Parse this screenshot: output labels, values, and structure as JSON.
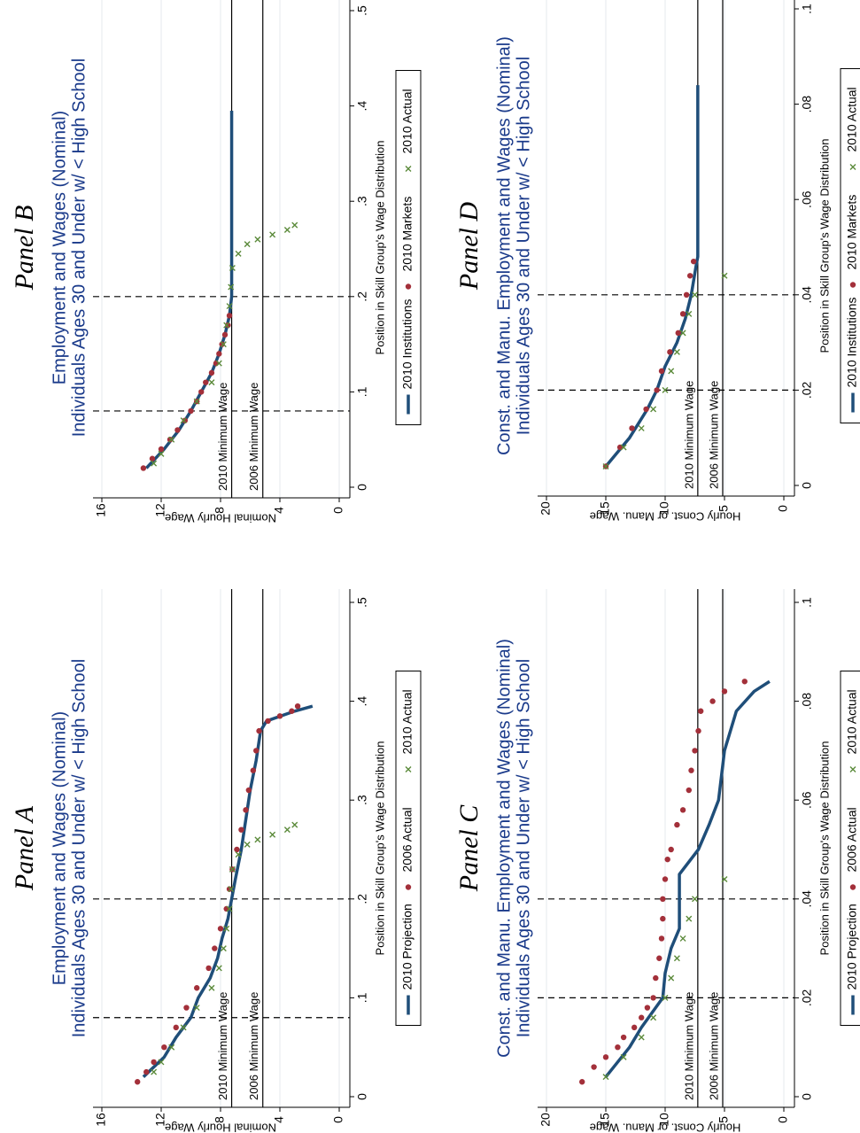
{
  "chart_data": [
    {
      "type": "line",
      "title": "Panel A",
      "subtitle": [
        "Employment and Wages (Nominal)",
        "Individuals Ages 30 and Under w/ < High School"
      ],
      "x_label": "Position in Skill Group's Wage Distribution",
      "y_label": "Nominal Hourly Wage",
      "xlim": [
        0,
        0.5
      ],
      "xticks": [
        0,
        {
          "value": 0.1,
          "label": ".1"
        },
        {
          "value": 0.2,
          "label": ".2"
        },
        {
          "value": 0.3,
          "label": ".3"
        },
        {
          "value": 0.4,
          "label": ".4"
        },
        {
          "value": 0.5,
          "label": ".5"
        }
      ],
      "ylim": [
        0,
        16
      ],
      "yticks": [
        0,
        4,
        8,
        12,
        16
      ],
      "grid": true,
      "reference_lines": [
        {
          "value": 7.25,
          "label": "2010 Minimum Wage"
        },
        {
          "value": 5.15,
          "label": "2006 Minimum Wage"
        }
      ],
      "vertical_lines": [
        0.08,
        0.2
      ],
      "series": [
        {
          "name": "2010 Projection",
          "style": "line",
          "color": "#1f4e79",
          "x": [
            0.02,
            0.04,
            0.06,
            0.08,
            0.1,
            0.12,
            0.14,
            0.16,
            0.18,
            0.2,
            0.22,
            0.25,
            0.28,
            0.31,
            0.34,
            0.37,
            0.38,
            0.39,
            0.395
          ],
          "values": [
            13.2,
            11.8,
            11.0,
            10.0,
            9.5,
            8.7,
            8.2,
            7.9,
            7.5,
            7.25,
            7.0,
            6.6,
            6.3,
            6.0,
            5.6,
            5.3,
            4.9,
            3.0,
            1.8
          ]
        },
        {
          "name": "2006 Actual",
          "style": "dot",
          "color": "#a3303a",
          "x": [
            0.015,
            0.025,
            0.035,
            0.05,
            0.07,
            0.09,
            0.11,
            0.13,
            0.15,
            0.17,
            0.19,
            0.21,
            0.23,
            0.25,
            0.27,
            0.29,
            0.31,
            0.33,
            0.35,
            0.37,
            0.38,
            0.385,
            0.39,
            0.395
          ],
          "values": [
            13.6,
            13.0,
            12.5,
            11.8,
            11.0,
            10.3,
            9.6,
            8.8,
            8.4,
            8.0,
            7.6,
            7.4,
            7.2,
            6.9,
            6.6,
            6.3,
            6.1,
            5.8,
            5.6,
            5.4,
            4.8,
            4.0,
            3.2,
            2.8
          ]
        },
        {
          "name": "2010 Actual",
          "style": "cross",
          "color": "#5b8a3a",
          "x": [
            0.025,
            0.035,
            0.05,
            0.07,
            0.09,
            0.11,
            0.13,
            0.15,
            0.17,
            0.19,
            0.21,
            0.23,
            0.245,
            0.255,
            0.26,
            0.265,
            0.27,
            0.275
          ],
          "values": [
            12.5,
            12.0,
            11.3,
            10.5,
            9.6,
            8.6,
            8.1,
            7.8,
            7.6,
            7.4,
            7.3,
            7.2,
            6.8,
            6.2,
            5.5,
            4.5,
            3.5,
            3.0
          ]
        }
      ]
    },
    {
      "type": "line",
      "title": "Panel B",
      "subtitle": [
        "Employment and Wages (Nominal)",
        "Individuals Ages 30 and Under w/ < High School"
      ],
      "x_label": "Position in Skill Group's Wage Distribution",
      "y_label": "Nominal Hourly Wage",
      "xlim": [
        0,
        0.5
      ],
      "xticks": [
        0,
        {
          "value": 0.1,
          "label": ".1"
        },
        {
          "value": 0.2,
          "label": ".2"
        },
        {
          "value": 0.3,
          "label": ".3"
        },
        {
          "value": 0.4,
          "label": ".4"
        },
        {
          "value": 0.5,
          "label": ".5"
        }
      ],
      "ylim": [
        0,
        16
      ],
      "yticks": [
        0,
        4,
        8,
        12,
        16
      ],
      "grid": true,
      "reference_lines": [
        {
          "value": 7.25,
          "label": "2010 Minimum Wage"
        },
        {
          "value": 5.15,
          "label": "2006 Minimum Wage"
        }
      ],
      "vertical_lines": [
        0.08,
        0.2
      ],
      "series": [
        {
          "name": "2010 Institutions",
          "style": "line",
          "color": "#1f4e79",
          "x": [
            0.02,
            0.04,
            0.06,
            0.08,
            0.1,
            0.12,
            0.14,
            0.16,
            0.18,
            0.2,
            0.25,
            0.3,
            0.35,
            0.395
          ],
          "values": [
            13.0,
            11.8,
            10.8,
            10.0,
            9.3,
            8.6,
            8.1,
            7.7,
            7.4,
            7.25,
            7.25,
            7.25,
            7.25,
            7.25
          ]
        },
        {
          "name": "2010 Markets",
          "style": "dot",
          "color": "#a3303a",
          "x": [
            0.02,
            0.03,
            0.04,
            0.05,
            0.06,
            0.07,
            0.08,
            0.09,
            0.1,
            0.11,
            0.12,
            0.13,
            0.14,
            0.15,
            0.16,
            0.17,
            0.18
          ],
          "values": [
            13.2,
            12.6,
            12.0,
            11.4,
            10.9,
            10.4,
            10.0,
            9.6,
            9.3,
            9.0,
            8.6,
            8.3,
            8.1,
            7.9,
            7.7,
            7.5,
            7.4
          ]
        },
        {
          "name": "2010 Actual",
          "style": "cross",
          "color": "#5b8a3a",
          "x": [
            0.025,
            0.035,
            0.05,
            0.07,
            0.09,
            0.11,
            0.13,
            0.15,
            0.17,
            0.19,
            0.21,
            0.23,
            0.245,
            0.255,
            0.26,
            0.265,
            0.27,
            0.275
          ],
          "values": [
            12.5,
            12.0,
            11.3,
            10.5,
            9.6,
            8.6,
            8.1,
            7.8,
            7.6,
            7.4,
            7.3,
            7.2,
            6.8,
            6.2,
            5.5,
            4.5,
            3.5,
            3.0
          ]
        }
      ]
    },
    {
      "type": "line",
      "title": "Panel C",
      "subtitle": [
        "Const. and Manu. Employment and Wages (Nominal)",
        "Individuals Ages 30 and Under w/ < High School"
      ],
      "x_label": "Position in Skill Group's Wage Distribution",
      "y_label": "Hourly Const. or Manu. Wage",
      "xlim": [
        0,
        0.1
      ],
      "xticks": [
        0,
        {
          "value": 0.02,
          "label": ".02"
        },
        {
          "value": 0.04,
          "label": ".04"
        },
        {
          "value": 0.06,
          "label": ".06"
        },
        {
          "value": 0.08,
          "label": ".08"
        },
        {
          "value": 0.1,
          "label": ".1"
        }
      ],
      "ylim": [
        0,
        20
      ],
      "yticks": [
        0,
        5,
        10,
        15,
        20
      ],
      "grid": true,
      "reference_lines": [
        {
          "value": 7.25,
          "label": "2010 Minimum Wage"
        },
        {
          "value": 5.15,
          "label": "2006 Minimum Wage"
        }
      ],
      "vertical_lines": [
        0.02,
        0.04
      ],
      "series": [
        {
          "name": "2010 Projection",
          "style": "line",
          "color": "#1f4e79",
          "x": [
            0.004,
            0.01,
            0.014,
            0.02,
            0.025,
            0.03,
            0.034,
            0.045,
            0.05,
            0.055,
            0.06,
            0.07,
            0.078,
            0.082,
            0.084
          ],
          "values": [
            15.0,
            13.0,
            12.0,
            10.2,
            10.0,
            9.5,
            8.8,
            8.8,
            7.2,
            6.3,
            5.5,
            5.0,
            4.0,
            2.5,
            1.2
          ]
        },
        {
          "name": "2006 Actual",
          "style": "dot",
          "color": "#a3303a",
          "x": [
            0.003,
            0.006,
            0.008,
            0.01,
            0.012,
            0.014,
            0.016,
            0.018,
            0.02,
            0.024,
            0.028,
            0.032,
            0.036,
            0.04,
            0.044,
            0.048,
            0.05,
            0.055,
            0.058,
            0.062,
            0.066,
            0.07,
            0.074,
            0.078,
            0.08,
            0.082,
            0.084
          ],
          "values": [
            17,
            16,
            15,
            14,
            13.5,
            12.6,
            12,
            11.5,
            11,
            10.8,
            10.5,
            10.3,
            10.2,
            10.2,
            10,
            9.8,
            9.5,
            9,
            8.5,
            8,
            7.8,
            7.5,
            7.2,
            7,
            6,
            5,
            3.3
          ]
        },
        {
          "name": "2010 Actual",
          "style": "cross",
          "color": "#5b8a3a",
          "x": [
            0.004,
            0.008,
            0.012,
            0.016,
            0.02,
            0.024,
            0.028,
            0.032,
            0.036,
            0.04,
            0.044
          ],
          "values": [
            15,
            13.5,
            12,
            11,
            10,
            9.5,
            9,
            8.5,
            8,
            7.5,
            5
          ]
        }
      ]
    },
    {
      "type": "line",
      "title": "Panel D",
      "subtitle": [
        "Const. and Manu. Employment and Wages (Nominal)",
        "Individuals Ages 30 and Under w/ < High School"
      ],
      "x_label": "Position in Skill Group's Wage Distribution",
      "y_label": "Hourly Const. or Manu. Wage",
      "xlim": [
        0,
        0.1
      ],
      "xticks": [
        0,
        {
          "value": 0.02,
          "label": ".02"
        },
        {
          "value": 0.04,
          "label": ".04"
        },
        {
          "value": 0.06,
          "label": ".06"
        },
        {
          "value": 0.08,
          "label": ".08"
        },
        {
          "value": 0.1,
          "label": ".1"
        }
      ],
      "ylim": [
        0,
        20
      ],
      "yticks": [
        0,
        5,
        10,
        15,
        20
      ],
      "grid": true,
      "reference_lines": [
        {
          "value": 7.25,
          "label": "2010 Minimum Wage"
        },
        {
          "value": 5.15,
          "label": "2006 Minimum Wage"
        }
      ],
      "vertical_lines": [
        0.02,
        0.04
      ],
      "series": [
        {
          "name": "2010 Institutions",
          "style": "line",
          "color": "#1f4e79",
          "x": [
            0.004,
            0.01,
            0.016,
            0.02,
            0.025,
            0.03,
            0.035,
            0.04,
            0.046,
            0.048,
            0.06,
            0.084
          ],
          "values": [
            15,
            13,
            11.5,
            10.7,
            10,
            9,
            8.3,
            7.8,
            7.4,
            7.25,
            7.25,
            7.25
          ]
        },
        {
          "name": "2010 Markets",
          "style": "dot",
          "color": "#a3303a",
          "x": [
            0.004,
            0.008,
            0.012,
            0.016,
            0.02,
            0.024,
            0.028,
            0.032,
            0.036,
            0.04,
            0.044,
            0.047
          ],
          "values": [
            15,
            13.8,
            12.8,
            11.6,
            10.7,
            10.3,
            9.6,
            8.9,
            8.5,
            8.2,
            7.9,
            7.6
          ]
        },
        {
          "name": "2010 Actual",
          "style": "cross",
          "color": "#5b8a3a",
          "x": [
            0.004,
            0.008,
            0.012,
            0.016,
            0.02,
            0.024,
            0.028,
            0.032,
            0.036,
            0.04,
            0.044
          ],
          "values": [
            15,
            13.5,
            12,
            11,
            10,
            9.5,
            9,
            8.5,
            8,
            7.5,
            5
          ]
        }
      ]
    }
  ]
}
